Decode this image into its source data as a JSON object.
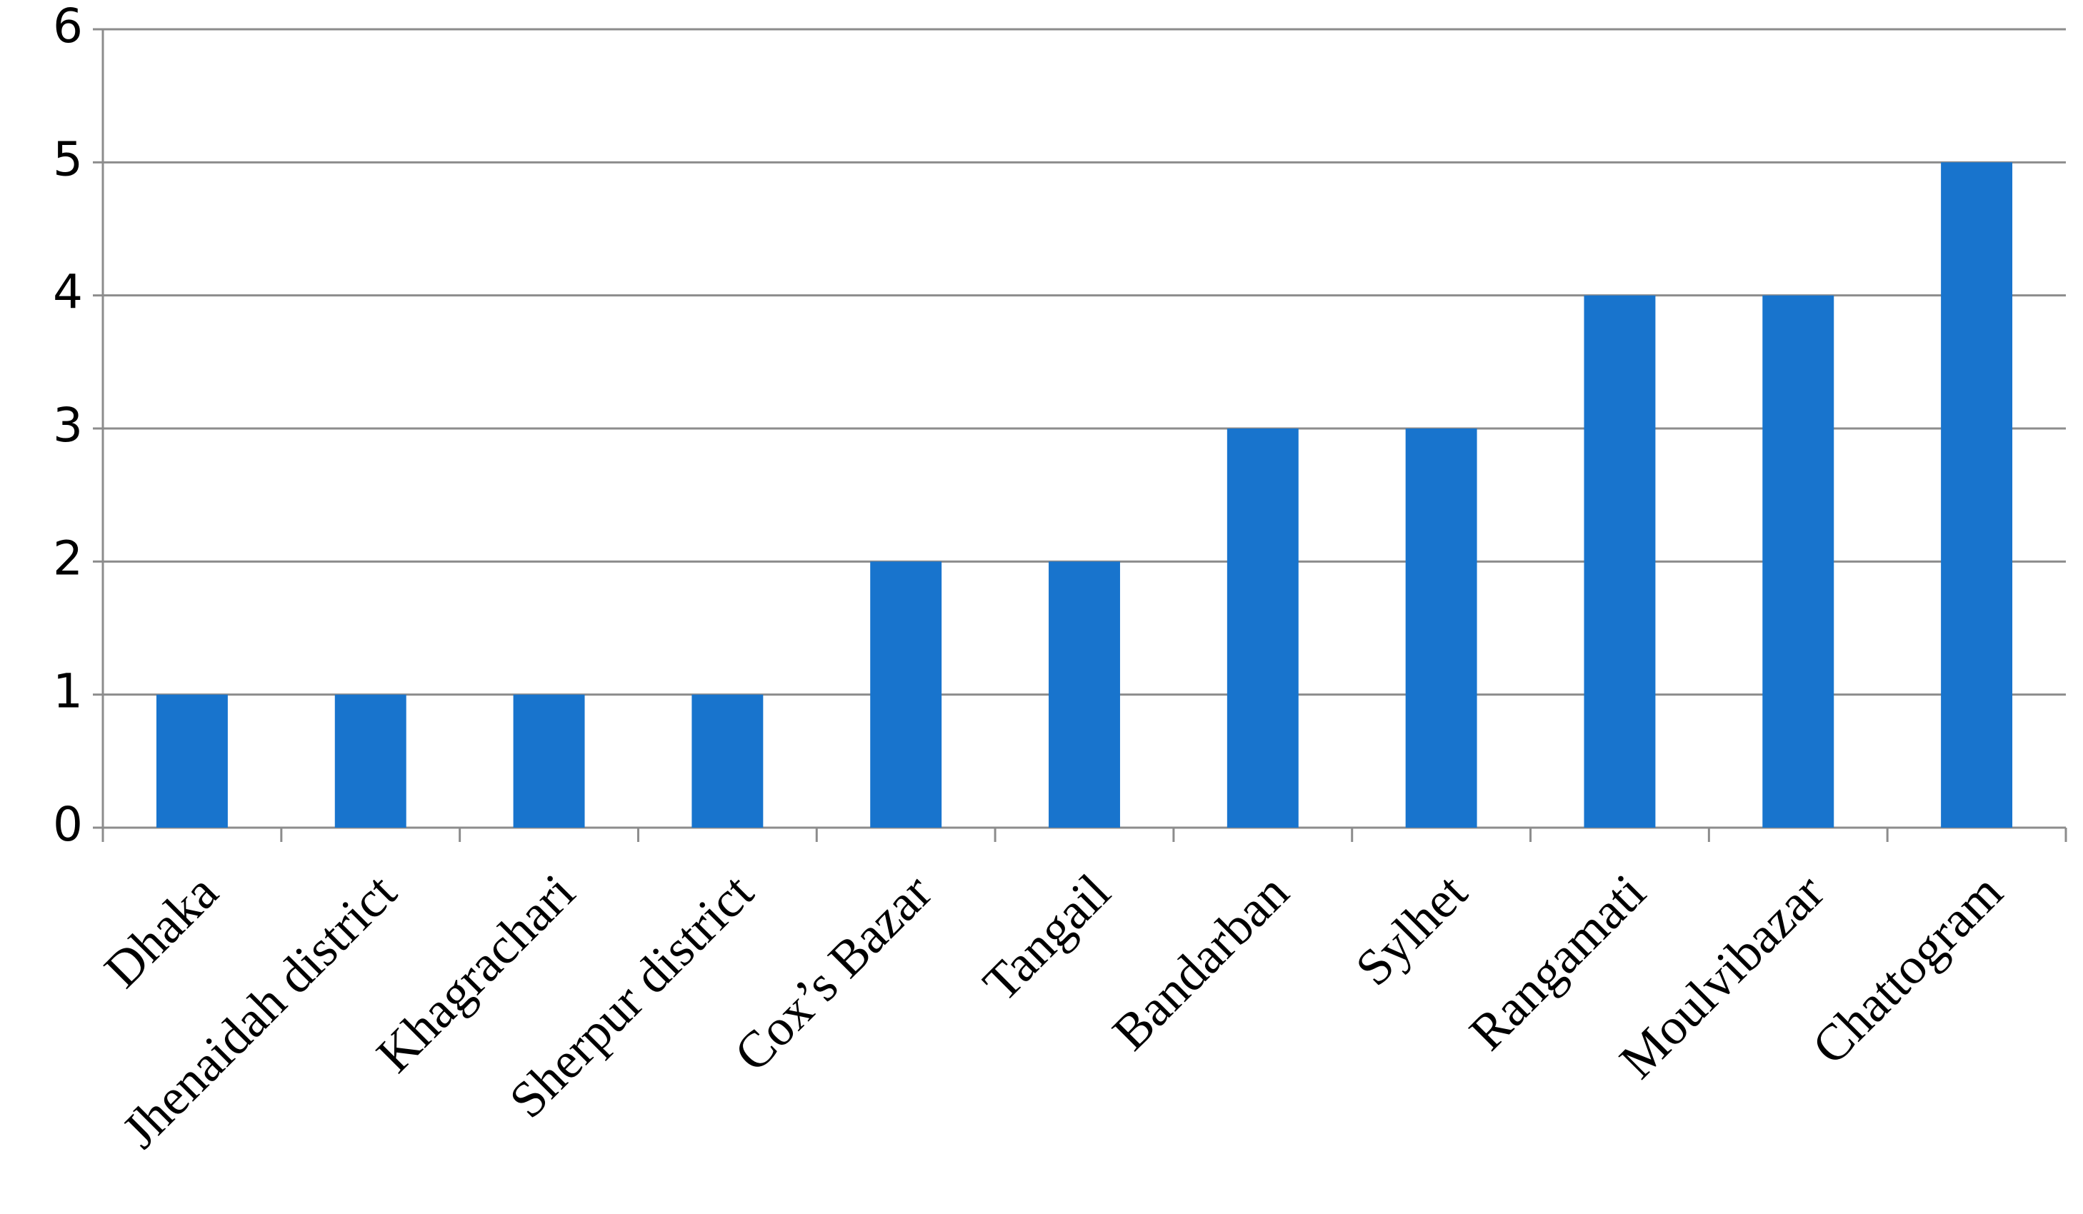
{
  "chart_data": {
    "type": "bar",
    "categories": [
      "Dhaka",
      "Jhenaidah district",
      "Khagrachari",
      "Sherpur district",
      "Cox’s Bazar",
      "Tangail",
      "Bandarban",
      "Sylhet",
      "Rangamati",
      "Moulvibazar",
      "Chattogram"
    ],
    "values": [
      1,
      1,
      1,
      1,
      2,
      2,
      3,
      3,
      4,
      4,
      5
    ],
    "color": "#1874cd",
    "ylim": [
      0,
      6
    ],
    "yticks": [
      0,
      1,
      2,
      3,
      4,
      5,
      6
    ],
    "grid": true
  }
}
